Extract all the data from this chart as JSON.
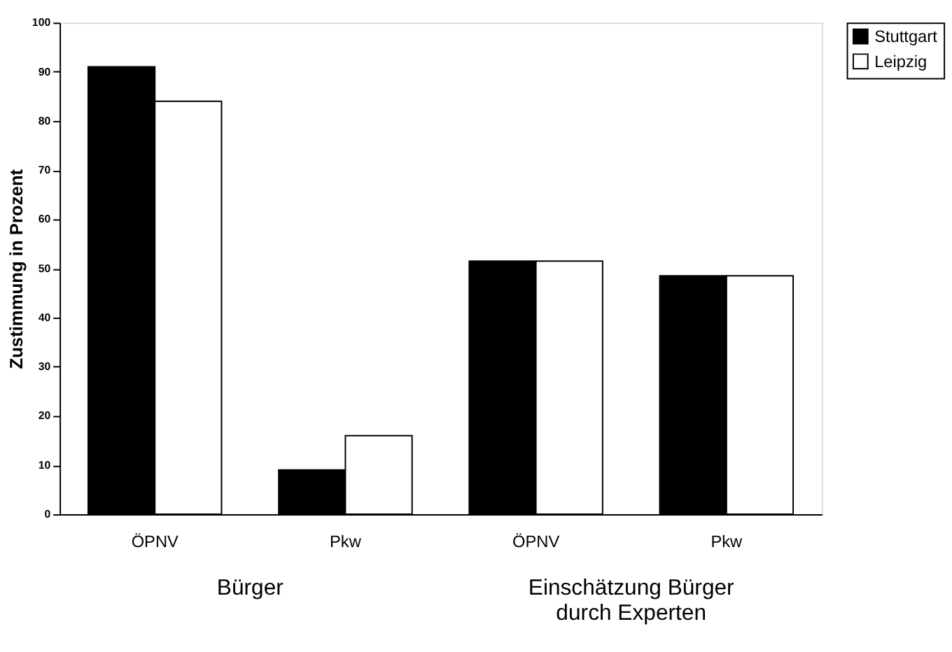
{
  "chart_data": {
    "type": "bar",
    "ylabel": "Zustimmung in Prozent",
    "categories": [
      "ÖPNV",
      "Pkw",
      "ÖPNV",
      "Pkw"
    ],
    "series": [
      {
        "name": "Stuttgart",
        "color": "#000000",
        "values": [
          91,
          9,
          51.5,
          48.5
        ]
      },
      {
        "name": "Leipzig",
        "color": "#ffffff",
        "values": [
          84,
          16,
          51.5,
          48.5
        ]
      }
    ],
    "ylim": [
      0,
      100
    ],
    "yticks": [
      0,
      10,
      20,
      30,
      40,
      50,
      60,
      70,
      80,
      90,
      100
    ],
    "grid": false,
    "legend": "right",
    "annotations": [
      "Bürger",
      "Einschätzung Bürger\ndurch Experten"
    ]
  }
}
